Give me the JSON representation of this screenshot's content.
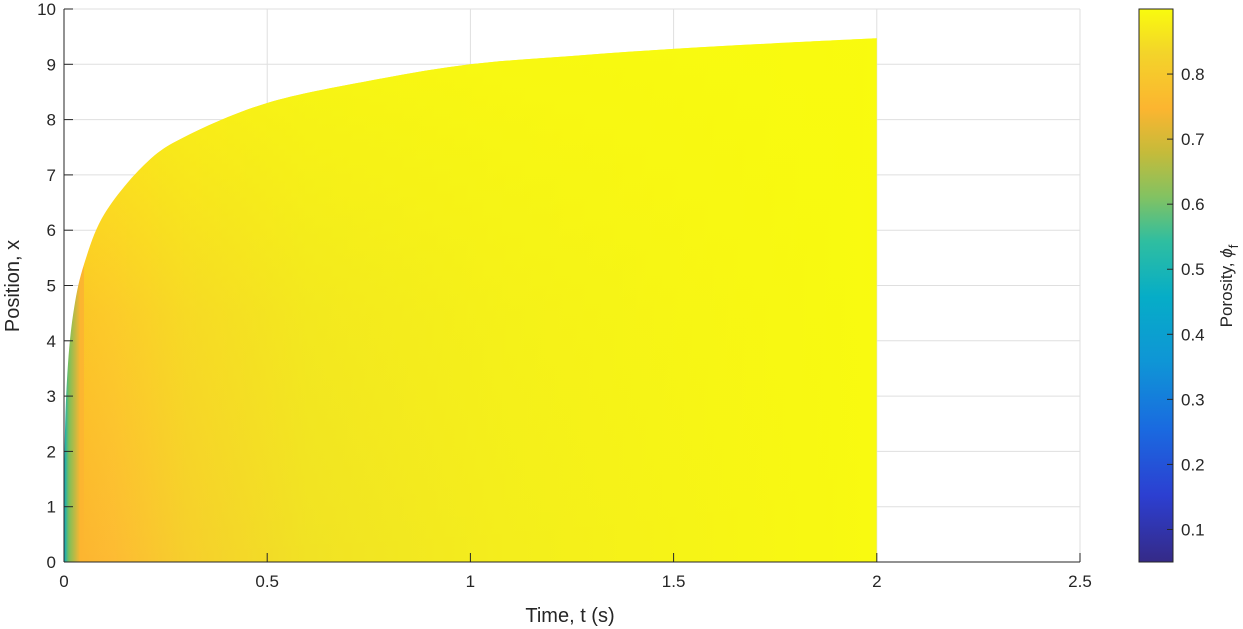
{
  "chart_data": {
    "type": "heatmap",
    "xlabel": "Time, t (s)",
    "ylabel": "Position, x",
    "xlim": [
      0,
      2.5
    ],
    "ylim": [
      0,
      10
    ],
    "xticks": [
      "0",
      "0.5",
      "1",
      "1.5",
      "2",
      "2.5"
    ],
    "yticks": [
      "0",
      "1",
      "2",
      "3",
      "4",
      "5",
      "6",
      "7",
      "8",
      "9",
      "10"
    ],
    "grid": true,
    "colormap": "parula",
    "colorbar": {
      "label": "Porosity, ",
      "label_symbol": "ϕ",
      "label_subscript": "f",
      "range": [
        0.05,
        0.9
      ],
      "ticks": [
        "0.1",
        "0.2",
        "0.3",
        "0.4",
        "0.5",
        "0.6",
        "0.7",
        "0.8"
      ]
    },
    "domain_boundary": {
      "t": [
        0,
        0.002,
        0.01,
        0.025,
        0.05,
        0.1,
        0.2,
        0.3,
        0.5,
        0.75,
        1.0,
        1.25,
        1.5,
        1.75,
        2.0
      ],
      "x_max": [
        0,
        2.2,
        3.6,
        4.6,
        5.4,
        6.3,
        7.2,
        7.7,
        8.3,
        8.7,
        9.0,
        9.15,
        9.28,
        9.38,
        9.47
      ]
    },
    "data_end_time": 2.0
  },
  "colors": {
    "low": "#352a87",
    "mid": "#2eb7a7",
    "orange": "#fcb530",
    "high": "#f9fb0e"
  }
}
